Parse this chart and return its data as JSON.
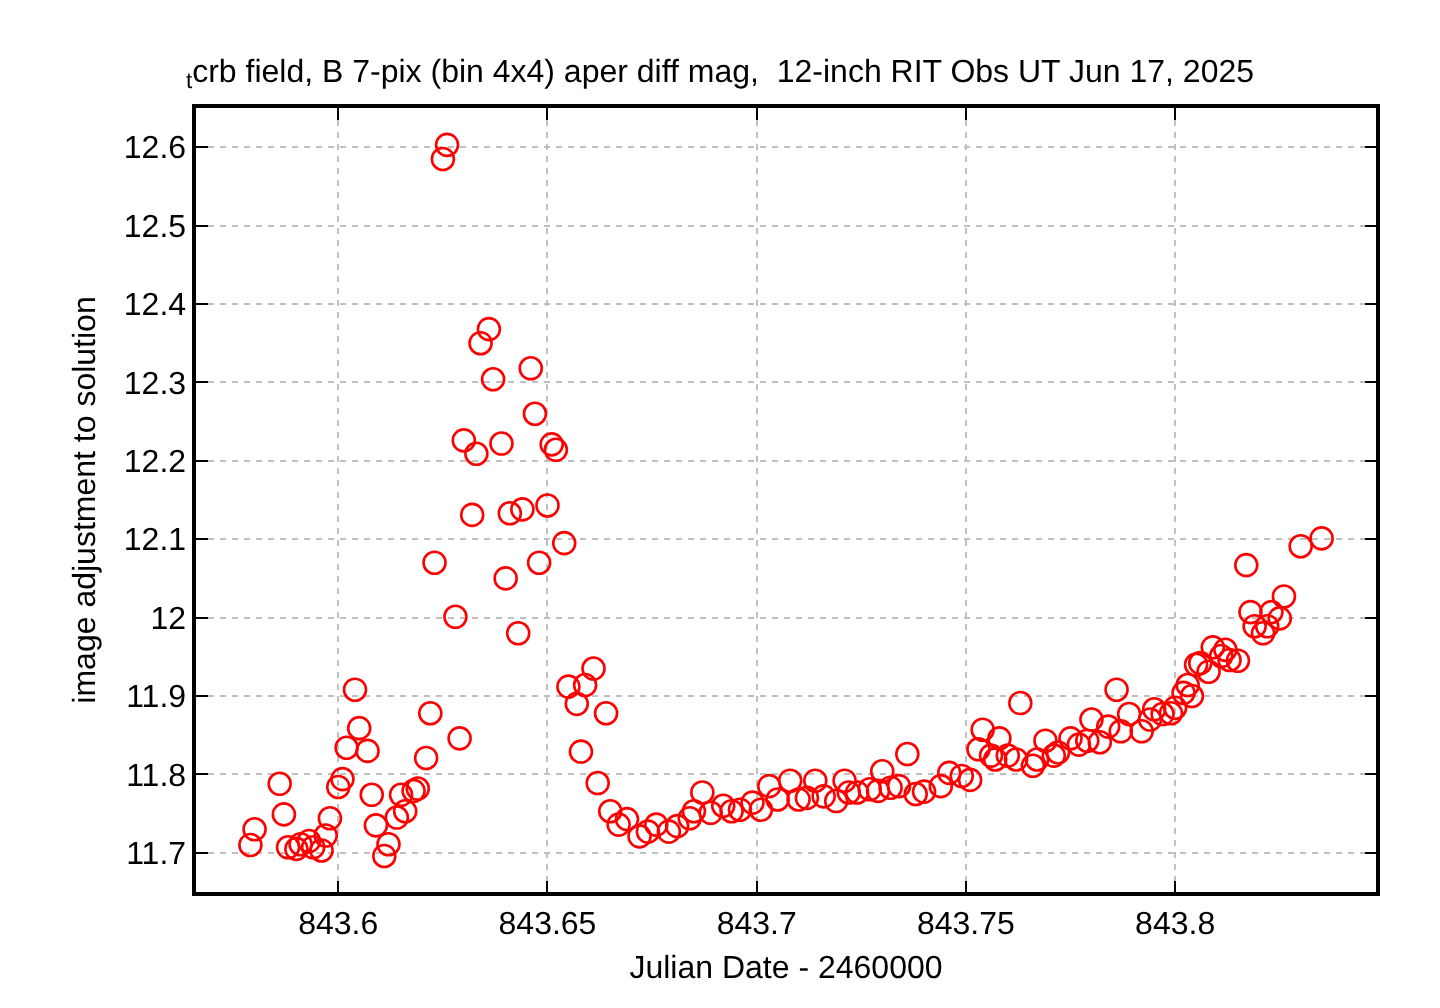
{
  "chart_data": {
    "type": "scatter",
    "title": "$_{t}$crb field, B 7-pix (bin 4x4) aper diff mag,  12-inch RIT Obs UT Jun 17, 2025",
    "xlabel": "Julian Date - 2460000",
    "ylabel": "image adjustment to solution",
    "xlim": [
      843.566,
      843.848
    ],
    "ylim": [
      11.65,
      12.65
    ],
    "xticks": [
      843.6,
      843.65,
      843.7,
      843.75,
      843.8
    ],
    "yticks": [
      11.7,
      11.8,
      11.9,
      12,
      12.1,
      12.2,
      12.3,
      12.4,
      12.5,
      12.6
    ],
    "grid": true,
    "marker": "circle",
    "series": [
      {
        "color": "#ff0000",
        "x": [
          843.579,
          843.58,
          843.586,
          843.587,
          843.588,
          843.59,
          843.591,
          843.593,
          843.594,
          843.596,
          843.597,
          843.598,
          843.6,
          843.601,
          843.602,
          843.604,
          843.605,
          843.607,
          843.608,
          843.609,
          843.611,
          843.612,
          843.614,
          843.615,
          843.616,
          843.618,
          843.619,
          843.621,
          843.622,
          843.623,
          843.625,
          843.626,
          843.628,
          843.629,
          843.63,
          843.632,
          843.633,
          843.634,
          843.636,
          843.637,
          843.639,
          843.64,
          843.641,
          843.643,
          843.644,
          843.646,
          843.647,
          843.648,
          843.65,
          843.651,
          843.652,
          843.654,
          843.655,
          843.657,
          843.658,
          843.659,
          843.661,
          843.662,
          843.664,
          843.665,
          843.667,
          843.669,
          843.672,
          843.674,
          843.676,
          843.679,
          843.681,
          843.684,
          843.685,
          843.687,
          843.689,
          843.692,
          843.694,
          843.696,
          843.699,
          843.701,
          843.703,
          843.705,
          843.708,
          843.71,
          843.712,
          843.714,
          843.716,
          843.719,
          843.721,
          843.722,
          843.724,
          843.727,
          843.729,
          843.73,
          843.732,
          843.734,
          843.736,
          843.738,
          843.74,
          843.744,
          843.746,
          843.749,
          843.751,
          843.753,
          843.754,
          843.756,
          843.757,
          843.758,
          843.76,
          843.762,
          843.763,
          843.766,
          843.767,
          843.769,
          843.771,
          843.772,
          843.775,
          843.777,
          843.779,
          843.78,
          843.782,
          843.784,
          843.786,
          843.787,
          843.789,
          843.792,
          843.794,
          843.795,
          843.797,
          843.799,
          843.8,
          843.802,
          843.803,
          843.804,
          843.805,
          843.806,
          843.808,
          843.809,
          843.811,
          843.812,
          843.813,
          843.815,
          843.817,
          843.818,
          843.819,
          843.821,
          843.822,
          843.823,
          843.825,
          843.826,
          843.83,
          843.835
        ],
        "values": [
          11.71,
          11.73,
          11.788,
          11.749,
          11.707,
          11.705,
          11.711,
          11.715,
          11.707,
          11.703,
          11.722,
          11.744,
          11.784,
          11.794,
          11.834,
          11.908,
          11.859,
          11.83,
          11.774,
          11.735,
          11.696,
          11.711,
          11.745,
          11.774,
          11.753,
          11.779,
          11.782,
          11.821,
          11.878,
          12.07,
          12.585,
          12.603,
          12.001,
          11.846,
          12.226,
          12.131,
          12.209,
          12.35,
          12.368,
          12.304,
          12.222,
          12.05,
          12.133,
          11.98,
          12.138,
          12.318,
          12.26,
          12.07,
          12.143,
          12.221,
          12.214,
          12.095,
          11.912,
          11.89,
          11.829,
          11.914,
          11.935,
          11.789,
          11.878,
          11.753,
          11.736,
          11.743,
          11.721,
          11.727,
          11.736,
          11.727,
          11.734,
          11.744,
          11.753,
          11.777,
          11.751,
          11.76,
          11.753,
          11.755,
          11.764,
          11.755,
          11.785,
          11.768,
          11.792,
          11.768,
          11.77,
          11.792,
          11.772,
          11.766,
          11.792,
          11.777,
          11.777,
          11.781,
          11.779,
          11.804,
          11.783,
          11.785,
          11.826,
          11.775,
          11.778,
          11.785,
          11.802,
          11.798,
          11.793,
          11.832,
          11.857,
          11.824,
          11.819,
          11.846,
          11.824,
          11.819,
          11.891,
          11.811,
          11.819,
          11.843,
          11.824,
          11.828,
          11.846,
          11.838,
          11.843,
          11.87,
          11.841,
          11.861,
          11.908,
          11.855,
          11.877,
          11.855,
          11.87,
          11.883,
          11.877,
          11.878,
          11.885,
          11.904,
          11.914,
          11.9,
          11.94,
          11.942,
          11.931,
          11.962,
          11.951,
          11.959,
          11.946,
          11.945,
          12.067,
          12.007,
          11.989,
          11.98,
          11.989,
          12.007,
          11.999,
          12.027,
          12.091,
          12.101
        ]
      }
    ]
  }
}
